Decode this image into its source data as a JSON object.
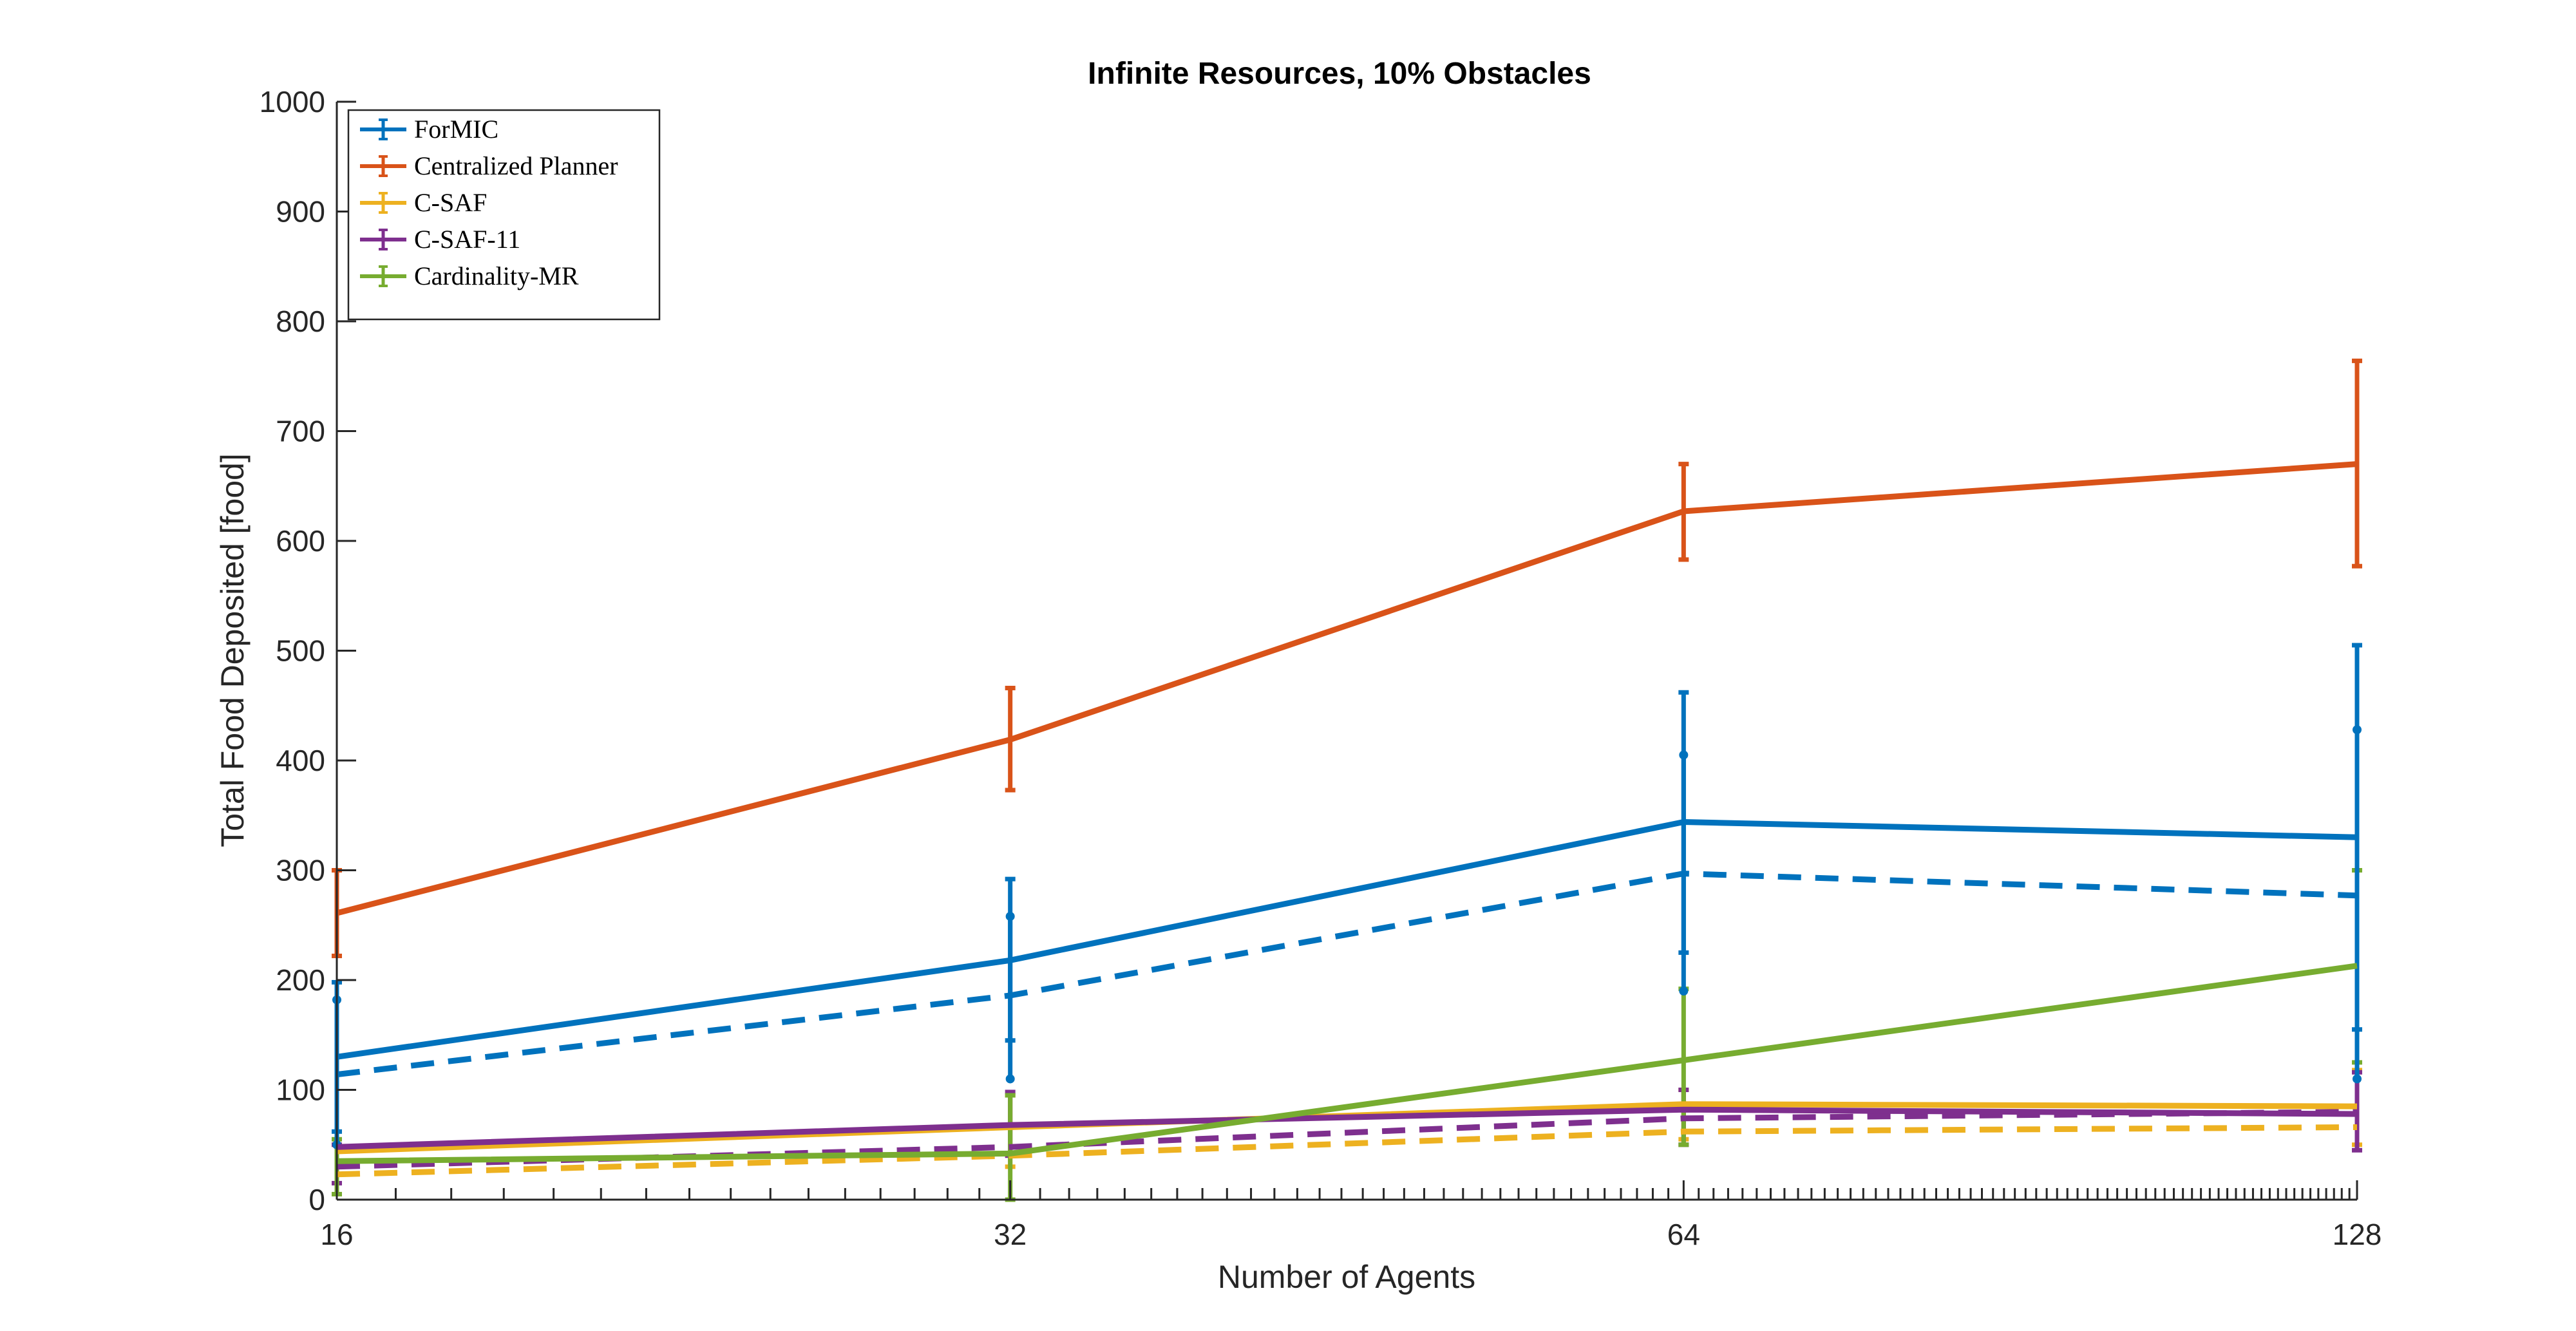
{
  "chart_data": {
    "type": "line",
    "title": "Infinite Resources, 10% Obstacles",
    "xlabel": "Number of Agents",
    "ylabel": "Total Food Deposited [food]",
    "x": [
      16,
      32,
      64,
      128
    ],
    "x_scale": "log2",
    "xlim": [
      16,
      128
    ],
    "ylim": [
      0,
      1000
    ],
    "xticks": [
      "16",
      "32",
      "64",
      "128"
    ],
    "yticks": [
      "0",
      "100",
      "200",
      "300",
      "400",
      "500",
      "600",
      "700",
      "800",
      "900",
      "1000"
    ],
    "grid": false,
    "legend_position": "top-left",
    "series": [
      {
        "name": "ForMIC",
        "color": "#0072BD",
        "style": "solid",
        "errorbars": "end-caps",
        "values": [
          130,
          218,
          344,
          330
        ],
        "error_low": [
          62,
          145,
          225,
          155
        ],
        "error_high": [
          198,
          292,
          462,
          505
        ]
      },
      {
        "name": "Centralized Planner",
        "color": "#D95319",
        "style": "solid",
        "errorbars": "end-caps",
        "values": [
          261,
          419,
          627,
          670
        ],
        "error_low": [
          222,
          373,
          583,
          577
        ],
        "error_high": [
          300,
          466,
          670,
          764
        ]
      },
      {
        "name": "C-SAF",
        "color": "#EDB120",
        "style": "solid",
        "errorbars": "end-caps",
        "values": [
          44,
          66,
          87,
          85
        ],
        "error_low": [
          5,
          30,
          55,
          50
        ],
        "error_high": [
          50,
          95,
          100,
          118
        ]
      },
      {
        "name": "C-SAF-11",
        "color": "#7E2F8E",
        "style": "solid",
        "errorbars": "end-caps",
        "values": [
          48,
          68,
          82,
          78
        ],
        "error_low": [
          15,
          40,
          50,
          45
        ],
        "error_high": [
          50,
          98,
          100,
          116
        ]
      },
      {
        "name": "Cardinality-MR",
        "color": "#77AC30",
        "style": "solid",
        "errorbars": "end-caps",
        "values": [
          35,
          42,
          127,
          213
        ],
        "error_low": [
          5,
          0,
          50,
          125
        ],
        "error_high": [
          55,
          95,
          192,
          300
        ]
      },
      {
        "color": "#0072BD",
        "style": "dashed",
        "errorbars": "dot-markers",
        "values": [
          114,
          186,
          297,
          277
        ],
        "error_low": [
          50,
          110,
          190,
          110
        ],
        "error_high": [
          182,
          258,
          405,
          428
        ]
      },
      {
        "color": "#EDB120",
        "style": "dashed",
        "errorbars": "none",
        "values": [
          23,
          40,
          62,
          66
        ]
      },
      {
        "color": "#7E2F8E",
        "style": "dashed",
        "errorbars": "none",
        "values": [
          30,
          48,
          74,
          80
        ]
      }
    ]
  }
}
